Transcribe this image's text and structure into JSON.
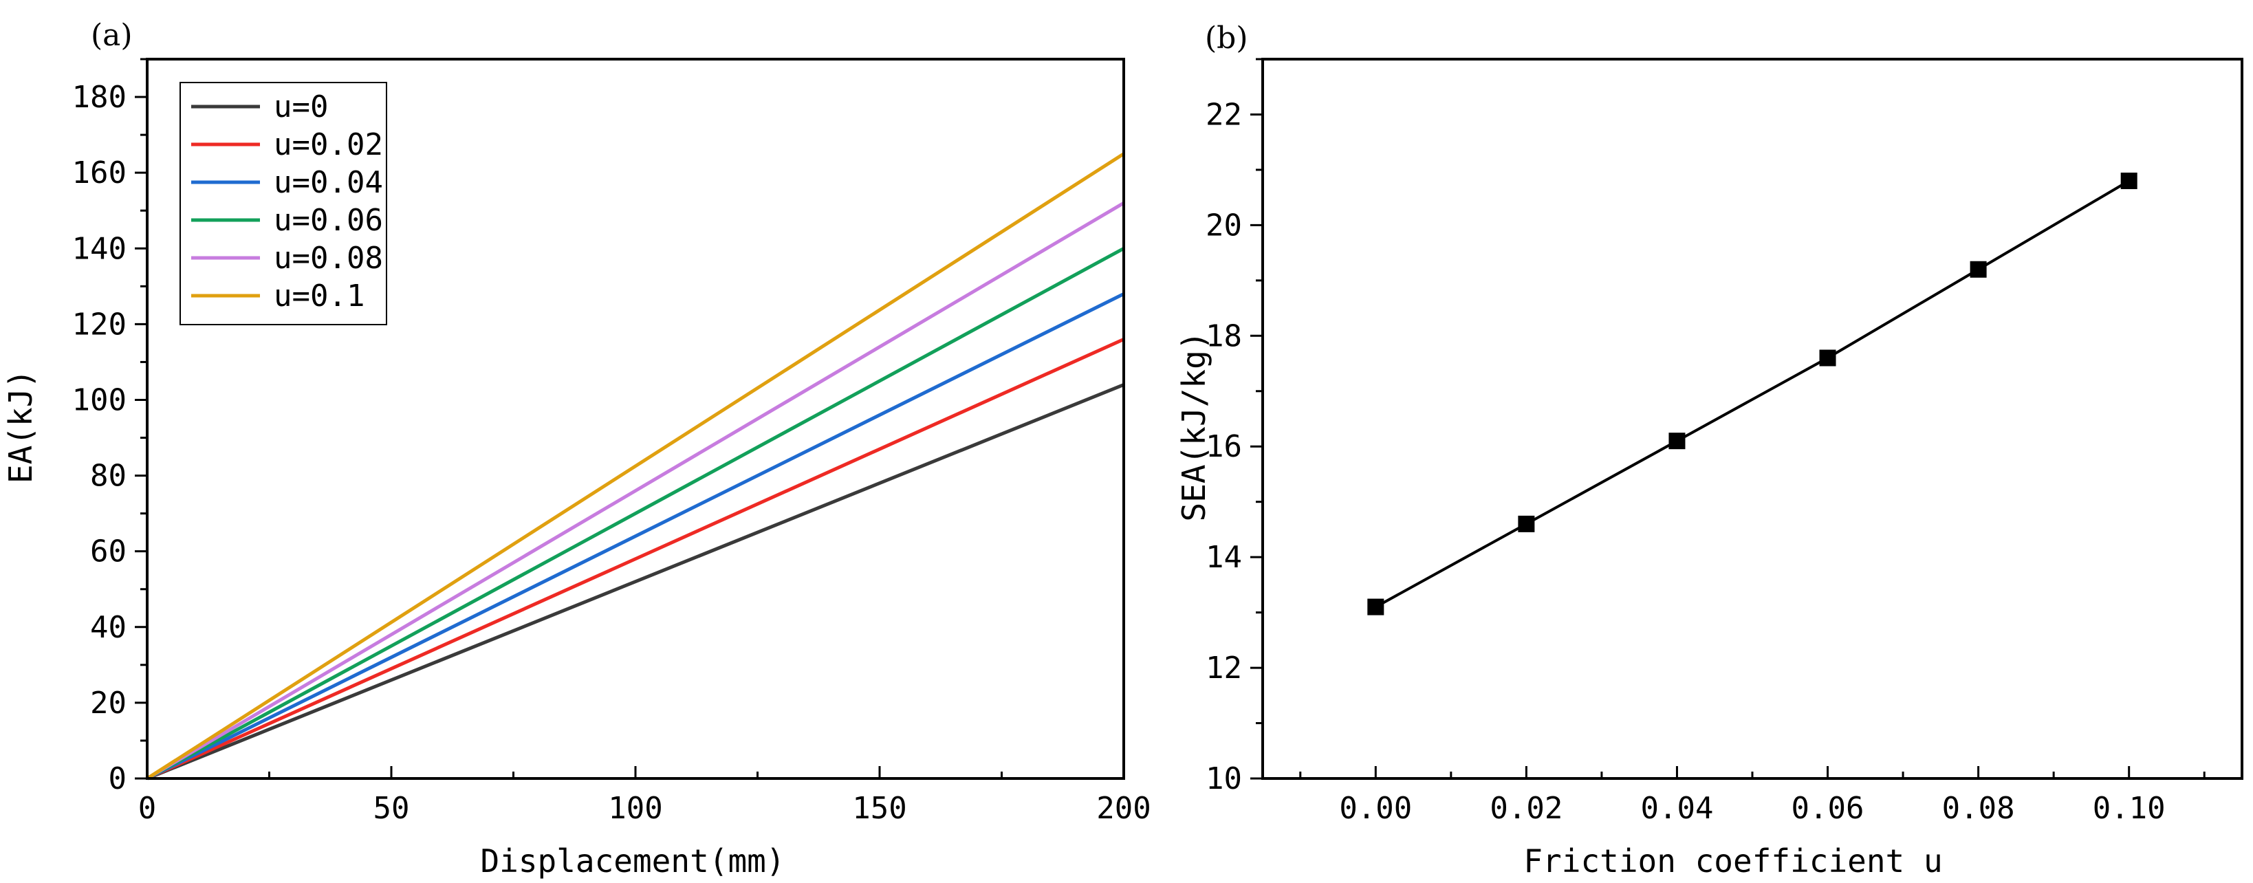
{
  "chart_data": [
    {
      "type": "line",
      "panel_label": "(a)",
      "title": "",
      "xlabel": "Displacement(mm)",
      "ylabel": "EA(kJ)",
      "xlim": [
        0,
        200
      ],
      "ylim": [
        0,
        190
      ],
      "xticks": [
        0,
        50,
        100,
        150,
        200
      ],
      "yticks": [
        0,
        20,
        40,
        60,
        80,
        100,
        120,
        140,
        160,
        180
      ],
      "legend_position": "top-left",
      "x": [
        0,
        200
      ],
      "series": [
        {
          "name": "u=0",
          "color": "#3a3a3a",
          "values": [
            0,
            104
          ]
        },
        {
          "name": "u=0.02",
          "color": "#ee2a24",
          "values": [
            0,
            116
          ]
        },
        {
          "name": "u=0.04",
          "color": "#1f6bd0",
          "values": [
            0,
            128
          ]
        },
        {
          "name": "u=0.06",
          "color": "#12a05a",
          "values": [
            0,
            140
          ]
        },
        {
          "name": "u=0.08",
          "color": "#c77cdf",
          "values": [
            0,
            152
          ]
        },
        {
          "name": "u=0.1",
          "color": "#e0a010",
          "values": [
            0,
            165
          ]
        }
      ]
    },
    {
      "type": "line",
      "panel_label": "(b)",
      "title": "",
      "xlabel": "Friction coefficient u",
      "ylabel": "SEA(kJ/kg)",
      "xlim": [
        -0.015,
        0.115
      ],
      "ylim": [
        10,
        23
      ],
      "xticks": [
        0.0,
        0.02,
        0.04,
        0.06,
        0.08,
        0.1
      ],
      "xtick_labels": [
        "0.00",
        "0.02",
        "0.04",
        "0.06",
        "0.08",
        "0.10"
      ],
      "yticks": [
        10,
        12,
        14,
        16,
        18,
        20,
        22
      ],
      "marker": "square",
      "color": "#000000",
      "series": [
        {
          "name": "SEA",
          "x": [
            0.0,
            0.02,
            0.04,
            0.06,
            0.08,
            0.1
          ],
          "values": [
            13.1,
            14.6,
            16.1,
            17.6,
            19.2,
            20.8
          ]
        }
      ]
    }
  ]
}
